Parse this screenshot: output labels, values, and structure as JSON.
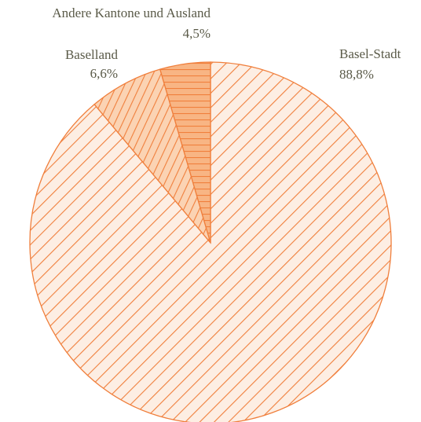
{
  "chart_data": {
    "type": "pie",
    "categories": [
      "Basel-Stadt",
      "Baselland",
      "Andere Kantone und Ausland"
    ],
    "values": [
      88.8,
      6.6,
      4.5
    ],
    "value_labels": [
      "88,8%",
      "6,6%",
      "4,5%"
    ],
    "colors": [
      "#fdeee3",
      "#fbd3b3",
      "#f8b584"
    ],
    "edge_color": "#f07f3c"
  }
}
